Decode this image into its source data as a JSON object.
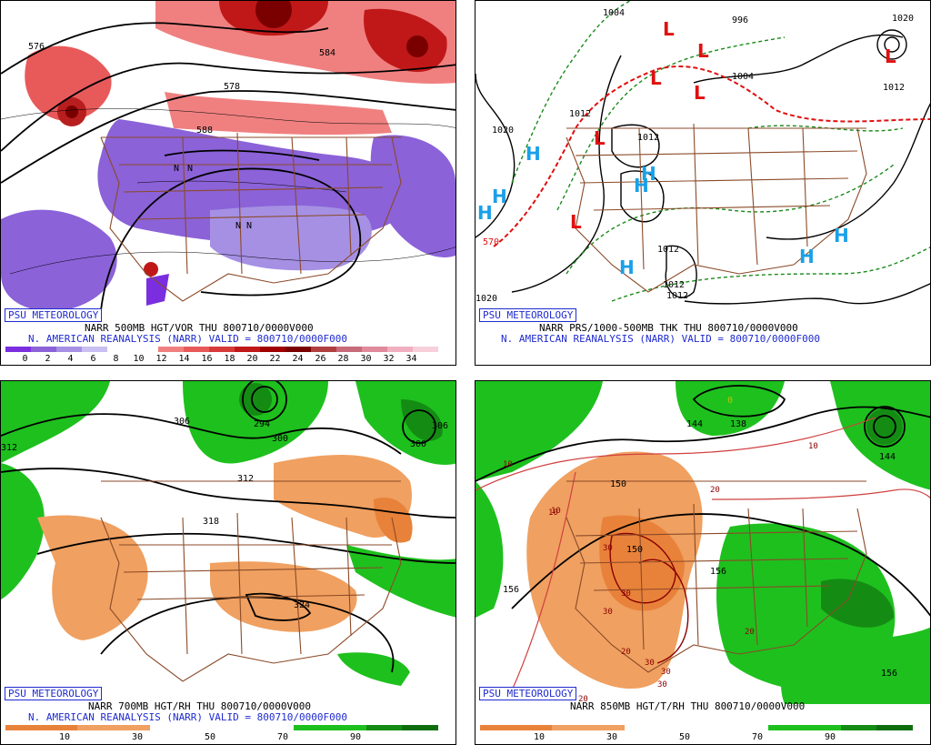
{
  "panels": [
    {
      "badge": "PSU METEOROLOGY",
      "caption1": "NARR 500MB HGT/VOR THU 800710/0000V000",
      "caption2": "N. AMERICAN REANALYSIS (NARR) VALID = 800710/0000F000",
      "colorbar": [
        "#7a2ee0",
        "#8b62d8",
        "#a590e4",
        "#c9bff0",
        "#ffffff",
        "#ffffff",
        "#f08080",
        "#e85a5a",
        "#d83a3a",
        "#c01818",
        "#a00000",
        "#7a0000",
        "#b04040",
        "#c86b7a",
        "#e08a9c",
        "#f0b0c0",
        "#f8d0dc"
      ],
      "ticks": [
        "0",
        "2",
        "4",
        "6",
        "8",
        "10",
        "12",
        "14",
        "16",
        "18",
        "20",
        "22",
        "24",
        "26",
        "28",
        "30",
        "32",
        "34"
      ],
      "labels": [
        "576",
        "578",
        "584",
        "588",
        "N",
        "N",
        "N",
        "N"
      ]
    },
    {
      "badge": "PSU METEOROLOGY",
      "caption1": "NARR PRS/1000-500MB THK THU 800710/0000V000",
      "caption2": "N. AMERICAN REANALYSIS (NARR) VALID = 800710/0000F000",
      "labels": [
        "1004",
        "996",
        "1004",
        "1012",
        "1020",
        "1012",
        "1012",
        "1012",
        "1012",
        "1020",
        "570",
        "1012",
        "1020"
      ],
      "highs": [
        "H",
        "H",
        "H",
        "H",
        "H",
        "H",
        "H"
      ],
      "lows": [
        "L",
        "L",
        "L",
        "L",
        "L",
        "L",
        "L"
      ]
    },
    {
      "badge": "PSU METEOROLOGY",
      "caption1": "NARR 700MB HGT/RH THU 800710/0000V000",
      "caption2": "N. AMERICAN REANALYSIS (NARR) VALID = 800710/0000F000",
      "colorbar": [
        "#e8823a",
        "#e8823a",
        "#f0a060",
        "#f0a060",
        "#ffffff",
        "#ffffff",
        "#ffffff",
        "#ffffff",
        "#1ec01e",
        "#1ec01e",
        "#148c14",
        "#0e6e0e"
      ],
      "ticks": [
        "10",
        "30",
        "50",
        "70",
        "90"
      ],
      "labels": [
        "306",
        "294",
        "300",
        "312",
        "318",
        "324",
        "300",
        "306",
        "312"
      ]
    },
    {
      "badge": "PSU METEOROLOGY",
      "caption1": "NARR 850MB HGT/T/RH THU 800710/0000V000",
      "colorbar": [
        "#e8823a",
        "#e8823a",
        "#f0a060",
        "#f0a060",
        "#ffffff",
        "#ffffff",
        "#ffffff",
        "#ffffff",
        "#1ec01e",
        "#1ec01e",
        "#148c14",
        "#0e6e0e"
      ],
      "ticks": [
        "10",
        "30",
        "50",
        "70",
        "90"
      ],
      "labels": [
        "144",
        "138",
        "144",
        "150",
        "150",
        "156",
        "156",
        "156",
        "0"
      ],
      "temps": [
        "10",
        "10",
        "10",
        "20",
        "30",
        "30",
        "30",
        "30",
        "20",
        "20",
        "30",
        "30",
        "20",
        "10"
      ]
    }
  ]
}
